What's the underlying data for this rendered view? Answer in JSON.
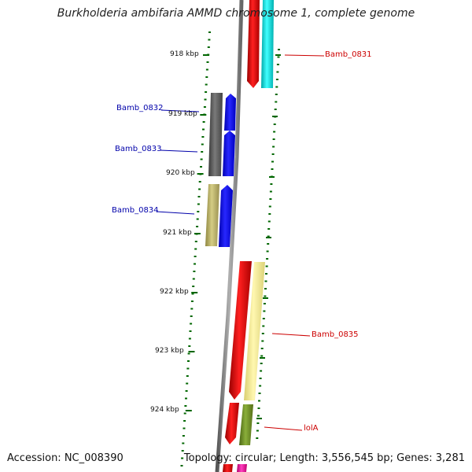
{
  "header": {
    "title": "Burkholderia ambifaria AMMD chromosome 1, complete genome"
  },
  "footer": {
    "accession": "Accession: NC_008390",
    "summary": "Topology: circular; Length: 3,556,545 bp; Genes: 3,281"
  },
  "colors": {
    "backbone": "#777777",
    "forward_label": "#cc0000",
    "reverse_label": "#0000aa",
    "tick": "#006600"
  },
  "ruler": {
    "ticks": [
      "918 kbp",
      "919 kbp",
      "920 kbp",
      "921 kbp",
      "922 kbp",
      "923 kbp",
      "924 kbp"
    ]
  },
  "genes": {
    "labels": [
      "Bamb_0831",
      "Bamb_0832",
      "Bamb_0833",
      "Bamb_0834",
      "Bamb_0835",
      "lolA"
    ]
  }
}
